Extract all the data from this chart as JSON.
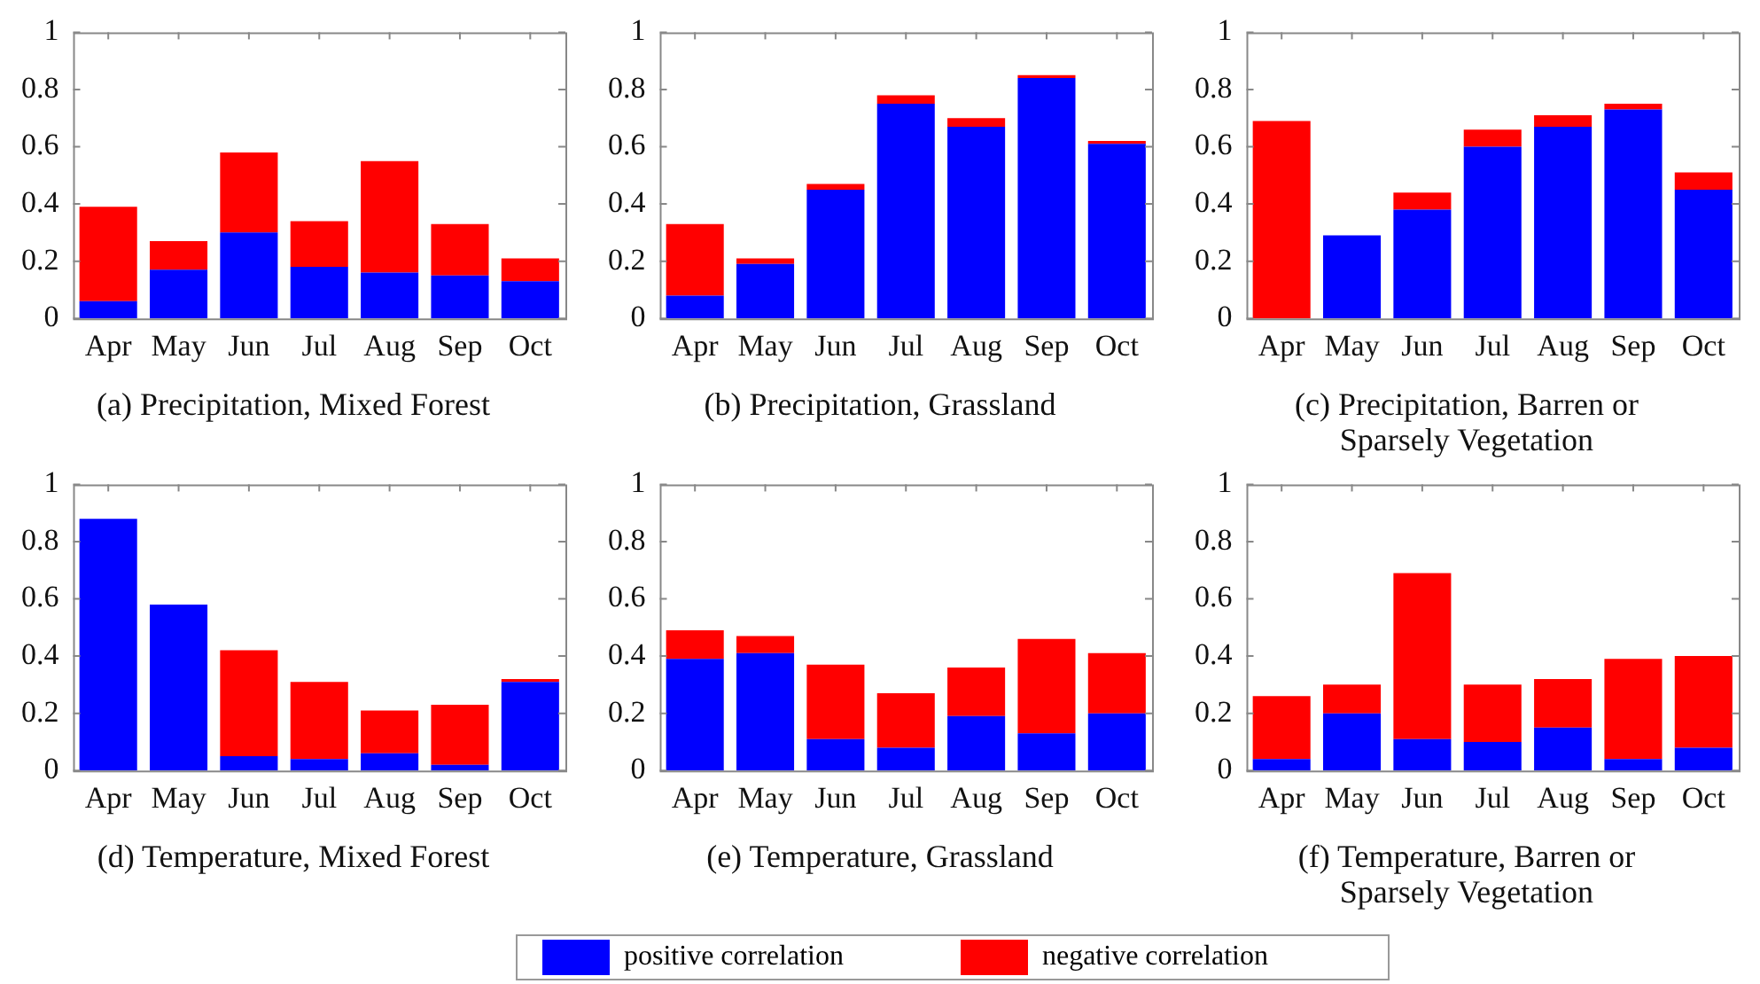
{
  "chart_data": [
    {
      "type": "bar",
      "title": "(a) Precipitation, Mixed Forest",
      "stacked": true,
      "categories": [
        "Apr",
        "May",
        "Jun",
        "Jul",
        "Aug",
        "Sep",
        "Oct"
      ],
      "ylim": [
        0,
        1
      ],
      "yticks": [
        0,
        0.2,
        0.4,
        0.6,
        0.8,
        1
      ],
      "grid": false,
      "legend": false,
      "series": [
        {
          "color": "#0000ff",
          "values": [
            0.06,
            0.17,
            0.3,
            0.18,
            0.16,
            0.15,
            0.13
          ]
        },
        {
          "color": "#ff0000",
          "values": [
            0.33,
            0.1,
            0.28,
            0.16,
            0.39,
            0.18,
            0.08
          ]
        }
      ]
    },
    {
      "type": "bar",
      "title": "(b) Precipitation, Grassland",
      "stacked": true,
      "categories": [
        "Apr",
        "May",
        "Jun",
        "Jul",
        "Aug",
        "Sep",
        "Oct"
      ],
      "ylim": [
        0,
        1
      ],
      "yticks": [
        0,
        0.2,
        0.4,
        0.6,
        0.8,
        1
      ],
      "grid": false,
      "legend": false,
      "series": [
        {
          "color": "#0000ff",
          "values": [
            0.08,
            0.19,
            0.45,
            0.75,
            0.67,
            0.84,
            0.61
          ]
        },
        {
          "color": "#ff0000",
          "values": [
            0.25,
            0.02,
            0.02,
            0.03,
            0.03,
            0.01,
            0.01
          ]
        }
      ]
    },
    {
      "type": "bar",
      "title": "(c)  Precipitation, Barren or Sparsely Vegetation",
      "stacked": true,
      "categories": [
        "Apr",
        "May",
        "Jun",
        "Jul",
        "Aug",
        "Sep",
        "Oct"
      ],
      "ylim": [
        0,
        1
      ],
      "yticks": [
        0,
        0.2,
        0.4,
        0.6,
        0.8,
        1
      ],
      "grid": false,
      "legend": false,
      "series": [
        {
          "color": "#0000ff",
          "values": [
            0,
            0.29,
            0.38,
            0.6,
            0.67,
            0.73,
            0.45
          ]
        },
        {
          "color": "#ff0000",
          "values": [
            0.69,
            0,
            0.06,
            0.06,
            0.04,
            0.02,
            0.06
          ]
        }
      ]
    },
    {
      "type": "bar",
      "title": "(d) Temperature, Mixed Forest",
      "stacked": true,
      "categories": [
        "Apr",
        "May",
        "Jun",
        "Jul",
        "Aug",
        "Sep",
        "Oct"
      ],
      "ylim": [
        0,
        1
      ],
      "yticks": [
        0,
        0.2,
        0.4,
        0.6,
        0.8,
        1
      ],
      "grid": false,
      "legend": false,
      "series": [
        {
          "color": "#0000ff",
          "values": [
            0.88,
            0.58,
            0.05,
            0.04,
            0.06,
            0.02,
            0.31
          ]
        },
        {
          "color": "#ff0000",
          "values": [
            0,
            0,
            0.37,
            0.27,
            0.15,
            0.21,
            0.01
          ]
        }
      ]
    },
    {
      "type": "bar",
      "title": "(e) Temperature, Grassland",
      "stacked": true,
      "categories": [
        "Apr",
        "May",
        "Jun",
        "Jul",
        "Aug",
        "Sep",
        "Oct"
      ],
      "ylim": [
        0,
        1
      ],
      "yticks": [
        0,
        0.2,
        0.4,
        0.6,
        0.8,
        1
      ],
      "grid": false,
      "legend": "bottom",
      "series": [
        {
          "name": "positive correlation",
          "color": "#0000ff",
          "values": [
            0.39,
            0.41,
            0.11,
            0.08,
            0.19,
            0.13,
            0.2
          ]
        },
        {
          "name": "negative correlation",
          "color": "#ff0000",
          "values": [
            0.1,
            0.06,
            0.26,
            0.19,
            0.17,
            0.33,
            0.21
          ]
        }
      ]
    },
    {
      "type": "bar",
      "title": "(f)  Temperature, Barren or Sparsely Vegetation",
      "stacked": true,
      "categories": [
        "Apr",
        "May",
        "Jun",
        "Jul",
        "Aug",
        "Sep",
        "Oct"
      ],
      "ylim": [
        0,
        1
      ],
      "yticks": [
        0,
        0.2,
        0.4,
        0.6,
        0.8,
        1
      ],
      "grid": false,
      "legend": false,
      "series": [
        {
          "color": "#0000ff",
          "values": [
            0.04,
            0.2,
            0.11,
            0.1,
            0.15,
            0.04,
            0.08
          ]
        },
        {
          "color": "#ff0000",
          "values": [
            0.22,
            0.1,
            0.58,
            0.2,
            0.17,
            0.35,
            0.32
          ]
        }
      ]
    }
  ]
}
